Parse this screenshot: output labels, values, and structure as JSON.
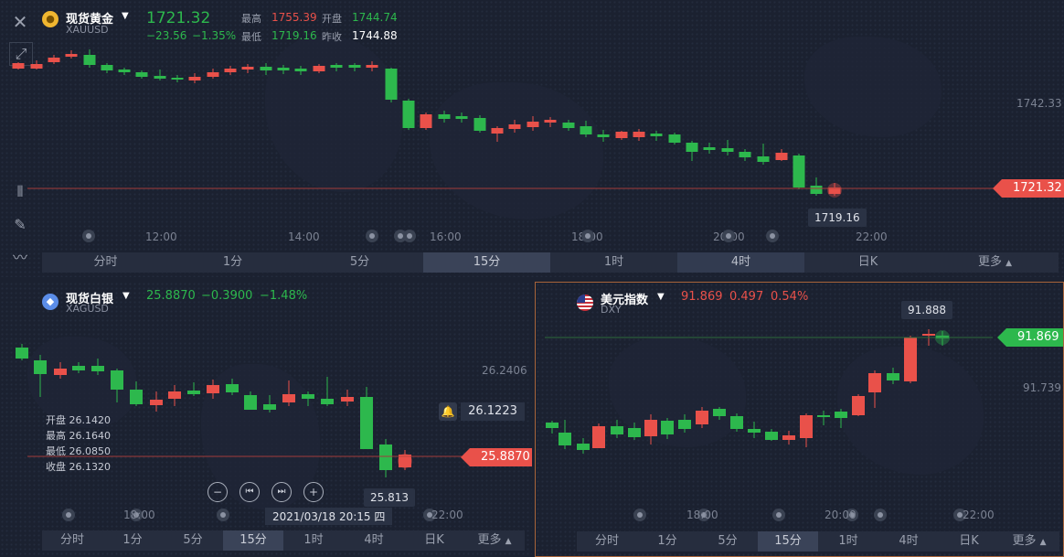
{
  "gold": {
    "name": "现货黄金",
    "code": "XAUUSD",
    "price": "1721.32",
    "change": "−23.56",
    "change_pct": "−1.35%",
    "high_label": "最高",
    "high": "1755.39",
    "open_label": "开盘",
    "open": "1744.74",
    "low_label": "最低",
    "low": "1719.16",
    "prev_label": "昨收",
    "prev": "1744.88",
    "axis_price": "1742.33",
    "last_tag": "1721.32",
    "low_tooltip": "1719.16",
    "time_ticks": [
      "12:00",
      "14:00",
      "16:00",
      "18:00",
      "20:00",
      "22:00"
    ],
    "timeframes": [
      "分时",
      "1分",
      "5分",
      "15分",
      "1时",
      "4时",
      "日K",
      "更多"
    ]
  },
  "silver": {
    "name": "现货白银",
    "code": "XAGUSD",
    "price": "25.8870",
    "change": "−0.3900",
    "change_pct": "−1.48%",
    "axis_price": "26.2406",
    "alert_price": "26.1223",
    "last_tag": "25.8870",
    "low_tooltip": "25.813",
    "ohlc": [
      {
        "label": "开盘",
        "value": "26.1420"
      },
      {
        "label": "最高",
        "value": "26.1640"
      },
      {
        "label": "最低",
        "value": "26.0850"
      },
      {
        "label": "收盘",
        "value": "26.1320"
      }
    ],
    "cursor_time": "2021/03/18 20:15 四",
    "time_ticks": [
      "18:00",
      "22:00"
    ],
    "timeframes": [
      "分时",
      "1分",
      "5分",
      "15分",
      "1时",
      "4时",
      "日K",
      "更多"
    ]
  },
  "dxy": {
    "name": "美元指数",
    "code": "DXY",
    "price": "91.869",
    "change": "0.497",
    "change_pct": "0.54%",
    "high_tooltip": "91.888",
    "axis_price": "91.739",
    "last_tag": "91.869",
    "time_ticks": [
      "18:00",
      "20:00",
      "22:00"
    ],
    "timeframes": [
      "分时",
      "1分",
      "5分",
      "15分",
      "1时",
      "4时",
      "日K",
      "更多"
    ]
  },
  "colors": {
    "up": "#e9514a",
    "down": "#2db84d",
    "bg": "#1b2130"
  }
}
